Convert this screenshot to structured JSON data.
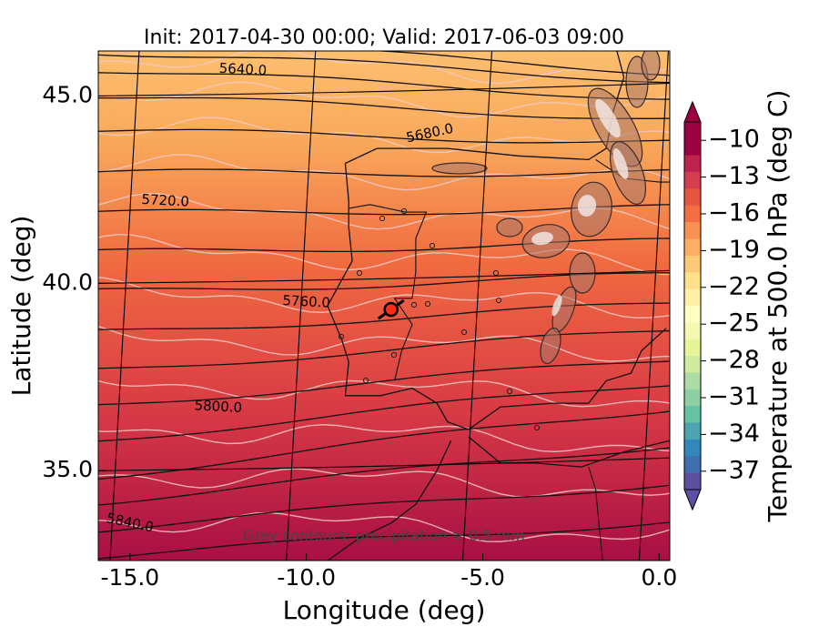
{
  "chart_data": {
    "type": "heatmap",
    "title": "Init: 2017-04-30 00:00; Valid: 2017-06-03 09:00",
    "xlabel": "Longitude (deg)",
    "ylabel": "Latitude (deg)",
    "xlim": [
      -15.9,
      0.3
    ],
    "ylim": [
      32.6,
      46.2
    ],
    "x_ticks": [
      {
        "value": -15.0,
        "label": "-15.0"
      },
      {
        "value": -10.0,
        "label": "-10.0"
      },
      {
        "value": -5.0,
        "label": "-5.0"
      },
      {
        "value": 0.0,
        "label": "0.0"
      }
    ],
    "y_ticks": [
      {
        "value": 45.0,
        "label": "45.0"
      },
      {
        "value": 40.0,
        "label": "40.0"
      },
      {
        "value": 35.0,
        "label": "35.0"
      }
    ],
    "colorbar": {
      "label": "Temperature at 500.0 hPa (deg C)",
      "range": [
        -38.5,
        -8.5
      ],
      "ticks": [
        "-10",
        "-13",
        "-16",
        "-19",
        "-22",
        "-25",
        "-28",
        "-31",
        "-34",
        "-37"
      ],
      "tick_values": [
        -10,
        -13,
        -16,
        -19,
        -22,
        -25,
        -28,
        -31,
        -34,
        -37
      ],
      "colormap": "Spectral_r",
      "extend": "both"
    },
    "temperature_field": [
      {
        "lat": 46.0,
        "temp": -19.8
      },
      {
        "lat": 44.5,
        "temp": -18.0
      },
      {
        "lat": 42.5,
        "temp": -16.5
      },
      {
        "lat": 40.0,
        "temp": -15.5
      },
      {
        "lat": 37.5,
        "temp": -14.0
      },
      {
        "lat": 35.0,
        "temp": -12.0
      },
      {
        "lat": 33.0,
        "temp": -10.5
      }
    ],
    "height_contours": [
      {
        "label": "5640.0",
        "label_lon": -11.8,
        "label_lat": 45.7
      },
      {
        "label": "5680.0",
        "label_lon": -6.5,
        "label_lat": 44.0
      },
      {
        "label": "5720.0",
        "label_lon": -14.0,
        "label_lat": 42.2
      },
      {
        "label": "5760.0",
        "label_lon": -10.0,
        "label_lat": 39.5
      },
      {
        "label": "5800.0",
        "label_lon": -12.5,
        "label_lat": 36.7
      },
      {
        "label": "5840.0",
        "label_lon": -15.0,
        "label_lat": 33.6
      }
    ],
    "marker": {
      "lon": -7.6,
      "lat": 39.3,
      "color": "#ff2a1a"
    },
    "annotation": "Grey contours: precipitation ≥ 0.5 mm",
    "grid": true
  }
}
